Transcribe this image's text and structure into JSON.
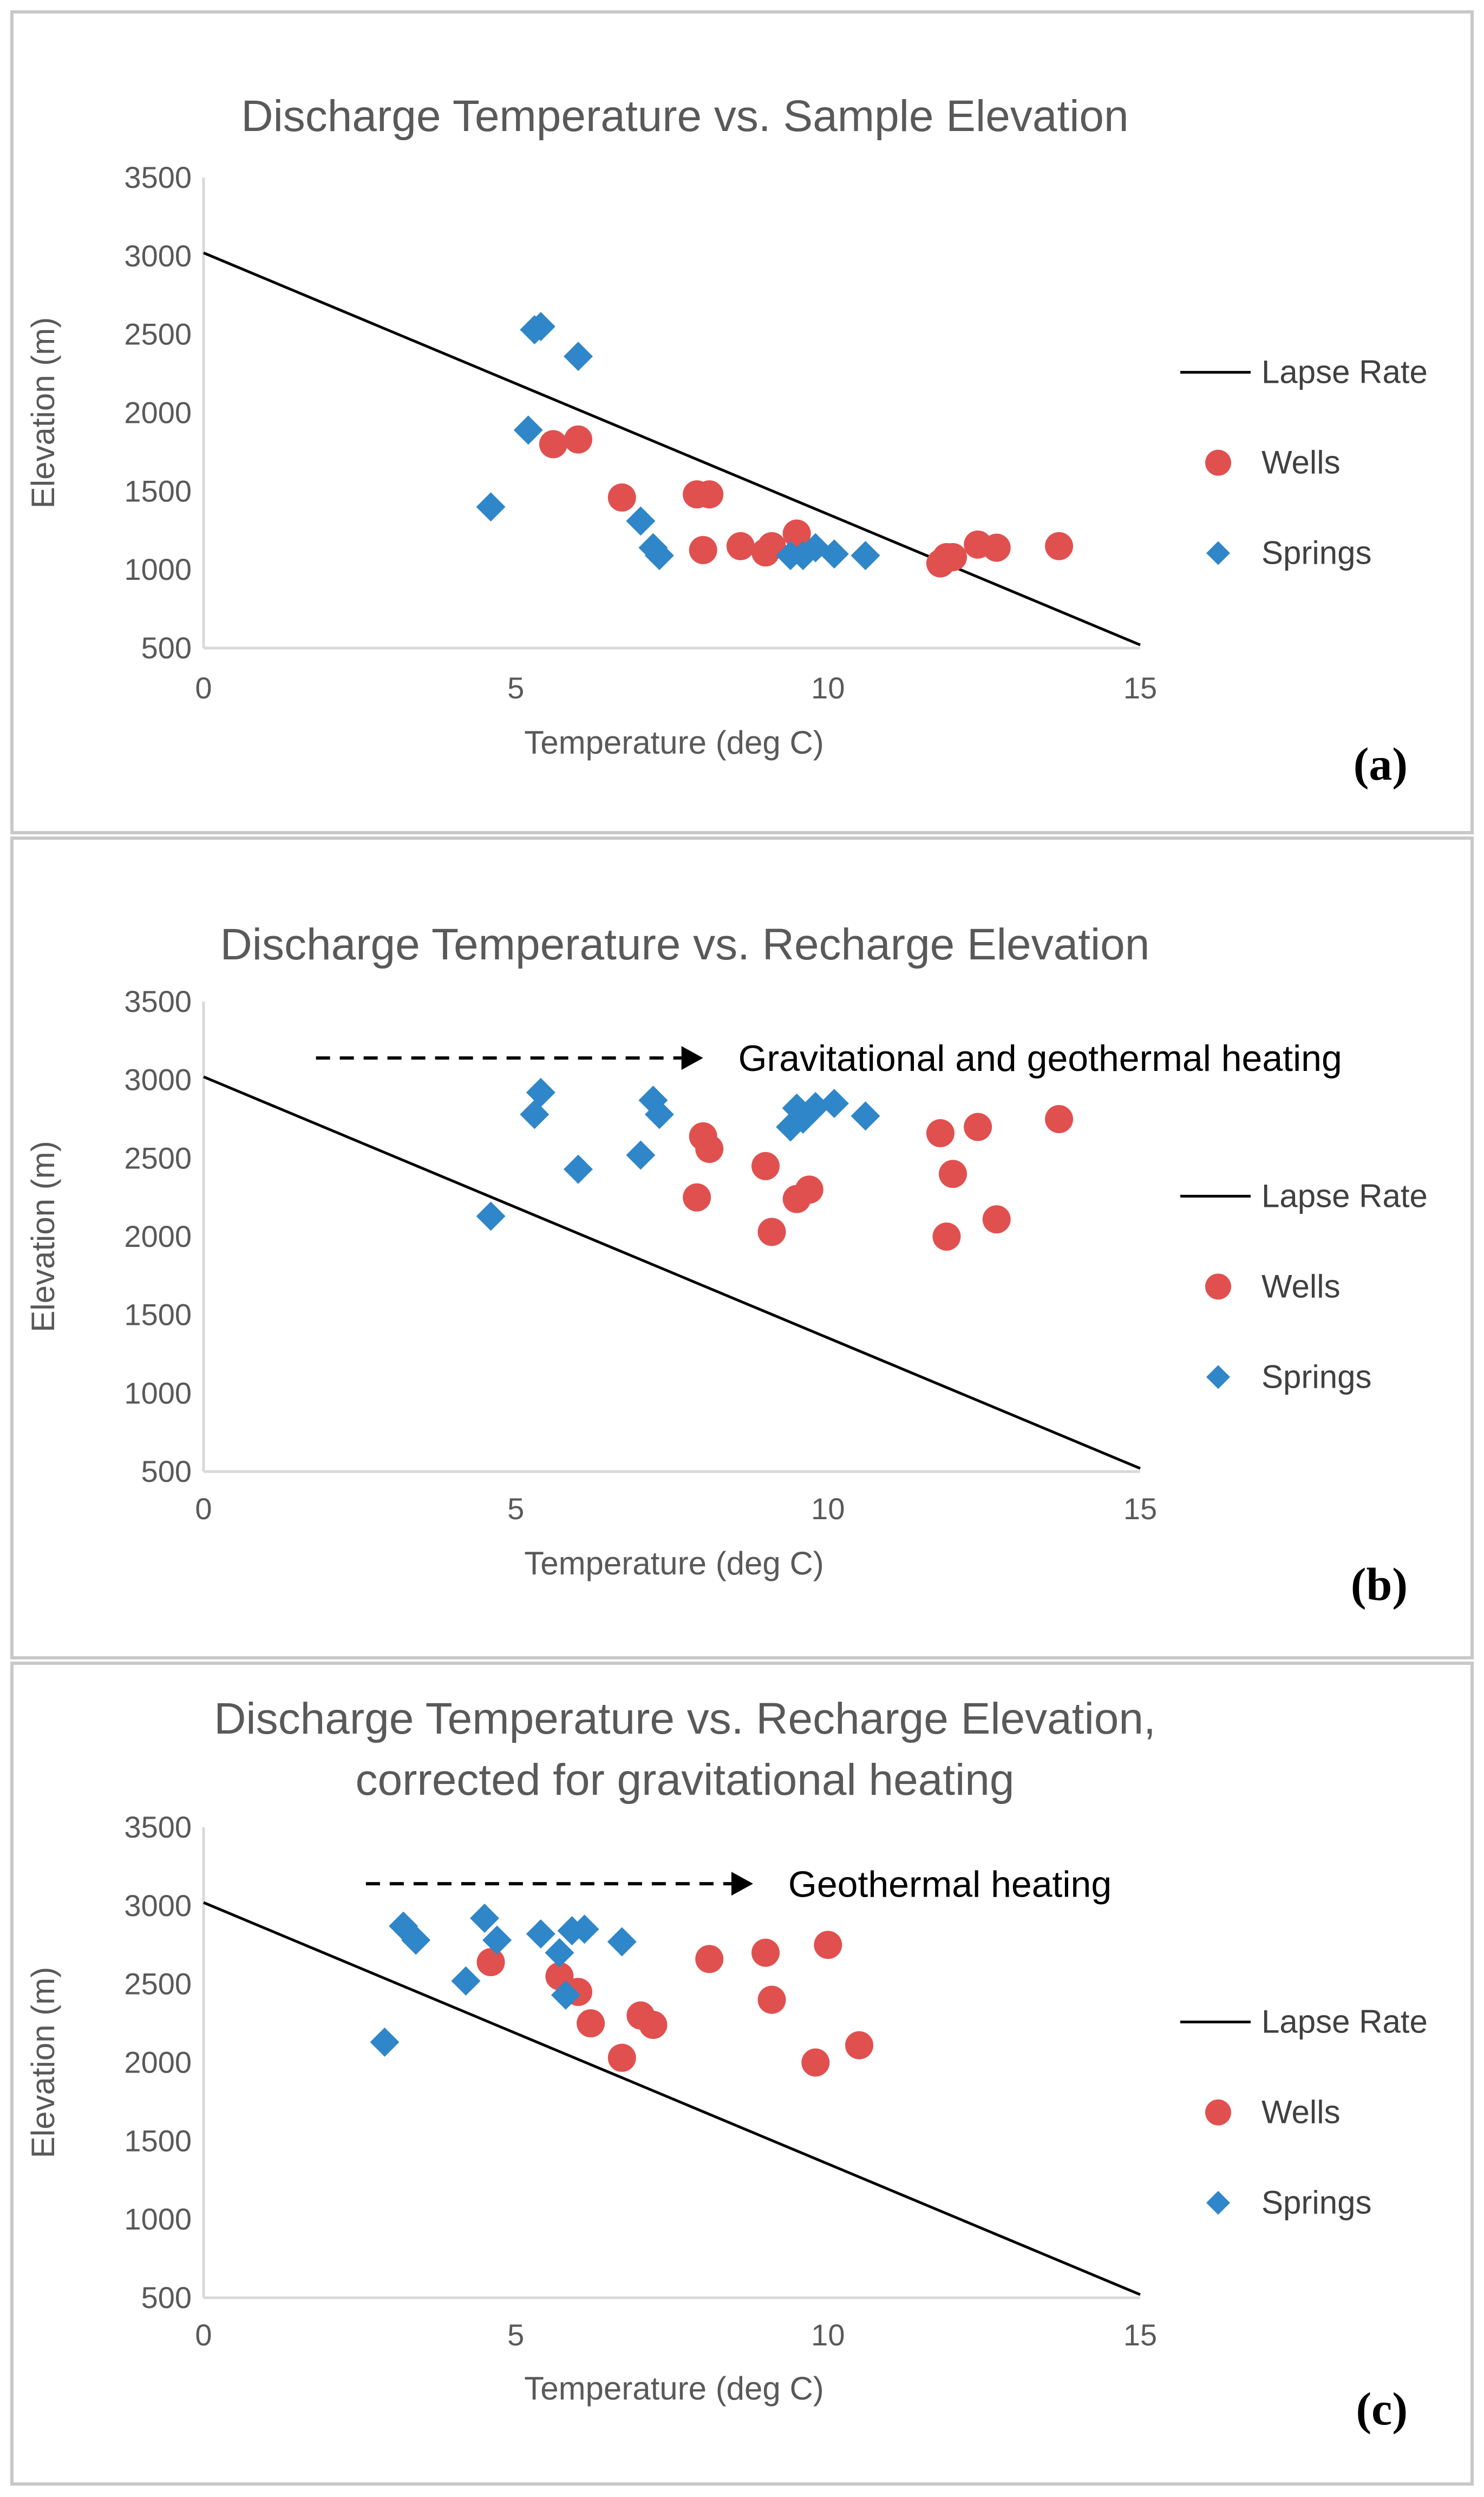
{
  "legend": {
    "lapse_rate": "Lapse Rate",
    "wells": "Wells",
    "springs": "Springs"
  },
  "colors": {
    "wells": "#e0504f",
    "springs": "#2f86c8",
    "lapse": "#000000"
  },
  "chart_data": [
    {
      "type": "scatter",
      "panel_label": "(a)",
      "title_lines": [
        "Discharge Temperature vs. Sample Elevation"
      ],
      "xlabel": "Temperature (deg C)",
      "ylabel": "Elevation (m)",
      "xlim": [
        0,
        15
      ],
      "ylim": [
        500,
        3500
      ],
      "x_ticks": [
        "0",
        "5",
        "10",
        "15"
      ],
      "y_ticks": [
        "500",
        "1000",
        "1500",
        "2000",
        "2500",
        "3000",
        "3500"
      ],
      "annotation": null,
      "series": [
        {
          "name": "Lapse Rate",
          "kind": "line",
          "points": [
            [
              0,
              3020
            ],
            [
              15,
              520
            ]
          ]
        },
        {
          "name": "Wells",
          "kind": "circle",
          "points": [
            [
              5.6,
              1800
            ],
            [
              6.0,
              1830
            ],
            [
              6.7,
              1460
            ],
            [
              7.9,
              1480
            ],
            [
              8.1,
              1480
            ],
            [
              8.0,
              1125
            ],
            [
              8.6,
              1150
            ],
            [
              9.0,
              1110
            ],
            [
              9.1,
              1150
            ],
            [
              9.5,
              1230
            ],
            [
              11.8,
              1040
            ],
            [
              11.9,
              1080
            ],
            [
              12.0,
              1080
            ],
            [
              12.4,
              1160
            ],
            [
              12.7,
              1140
            ],
            [
              13.7,
              1150
            ]
          ]
        },
        {
          "name": "Springs",
          "kind": "diamond",
          "points": [
            [
              4.6,
              1400
            ],
            [
              5.2,
              1890
            ],
            [
              5.3,
              2530
            ],
            [
              5.4,
              2550
            ],
            [
              6.0,
              2360
            ],
            [
              7.0,
              1310
            ],
            [
              7.2,
              1140
            ],
            [
              7.3,
              1090
            ],
            [
              9.4,
              1090
            ],
            [
              9.6,
              1090
            ],
            [
              9.8,
              1140
            ],
            [
              10.1,
              1100
            ],
            [
              10.6,
              1090
            ]
          ]
        }
      ]
    },
    {
      "type": "scatter",
      "panel_label": "(b)",
      "title_lines": [
        "Discharge Temperature vs.  Recharge Elevation"
      ],
      "xlabel": "Temperature (deg C)",
      "ylabel": "Elevation (m)",
      "xlim": [
        0,
        15
      ],
      "ylim": [
        500,
        3500
      ],
      "x_ticks": [
        "0",
        "5",
        "10",
        "15"
      ],
      "y_ticks": [
        "500",
        "1000",
        "1500",
        "2000",
        "2500",
        "3000",
        "3500"
      ],
      "annotation": {
        "text": "Gravitational and geothermal heating",
        "arrow_from": [
          1.8,
          3140
        ],
        "arrow_to": [
          8.0,
          3140
        ]
      },
      "series": [
        {
          "name": "Lapse Rate",
          "kind": "line",
          "points": [
            [
              0,
              3020
            ],
            [
              15,
              520
            ]
          ]
        },
        {
          "name": "Wells",
          "kind": "circle",
          "points": [
            [
              7.9,
              2250
            ],
            [
              8.0,
              2640
            ],
            [
              8.1,
              2560
            ],
            [
              9.0,
              2450
            ],
            [
              9.1,
              2030
            ],
            [
              9.5,
              2240
            ],
            [
              9.7,
              2300
            ],
            [
              11.8,
              2660
            ],
            [
              11.9,
              2000
            ],
            [
              12.0,
              2400
            ],
            [
              12.4,
              2700
            ],
            [
              12.7,
              2110
            ],
            [
              13.7,
              2750
            ]
          ]
        },
        {
          "name": "Springs",
          "kind": "diamond",
          "points": [
            [
              4.6,
              2130
            ],
            [
              5.3,
              2780
            ],
            [
              5.4,
              2920
            ],
            [
              6.0,
              2430
            ],
            [
              7.0,
              2520
            ],
            [
              7.2,
              2870
            ],
            [
              7.3,
              2780
            ],
            [
              9.4,
              2700
            ],
            [
              9.5,
              2820
            ],
            [
              9.6,
              2750
            ],
            [
              9.8,
              2830
            ],
            [
              10.1,
              2850
            ],
            [
              10.6,
              2770
            ]
          ]
        }
      ]
    },
    {
      "type": "scatter",
      "panel_label": "(c)",
      "title_lines": [
        "Discharge Temperature vs. Recharge Elevation,",
        "corrected for gravitational heating"
      ],
      "xlabel": "Temperature (deg C)",
      "ylabel": "Elevation (m)",
      "xlim": [
        0,
        15
      ],
      "ylim": [
        500,
        3500
      ],
      "x_ticks": [
        "0",
        "5",
        "10",
        "15"
      ],
      "y_ticks": [
        "500",
        "1000",
        "1500",
        "2000",
        "2500",
        "3000",
        "3500"
      ],
      "annotation": {
        "text": "Geothermal heating",
        "arrow_from": [
          2.6,
          3140
        ],
        "arrow_to": [
          8.8,
          3140
        ]
      },
      "series": [
        {
          "name": "Lapse Rate",
          "kind": "line",
          "points": [
            [
              0,
              3020
            ],
            [
              15,
              520
            ]
          ]
        },
        {
          "name": "Wells",
          "kind": "circle",
          "points": [
            [
              4.6,
              2640
            ],
            [
              5.7,
              2550
            ],
            [
              6.0,
              2450
            ],
            [
              6.2,
              2250
            ],
            [
              6.7,
              2030
            ],
            [
              7.0,
              2300
            ],
            [
              7.2,
              2240
            ],
            [
              8.1,
              2660
            ],
            [
              9.0,
              2700
            ],
            [
              9.1,
              2400
            ],
            [
              9.8,
              2000
            ],
            [
              10.0,
              2750
            ],
            [
              10.5,
              2110
            ]
          ]
        },
        {
          "name": "Springs",
          "kind": "diamond",
          "points": [
            [
              2.9,
              2130
            ],
            [
              3.2,
              2870
            ],
            [
              3.4,
              2780
            ],
            [
              4.2,
              2520
            ],
            [
              4.5,
              2920
            ],
            [
              4.7,
              2780
            ],
            [
              5.4,
              2820
            ],
            [
              5.7,
              2700
            ],
            [
              5.8,
              2430
            ],
            [
              5.9,
              2840
            ],
            [
              6.1,
              2850
            ],
            [
              6.7,
              2770
            ]
          ]
        }
      ]
    }
  ]
}
